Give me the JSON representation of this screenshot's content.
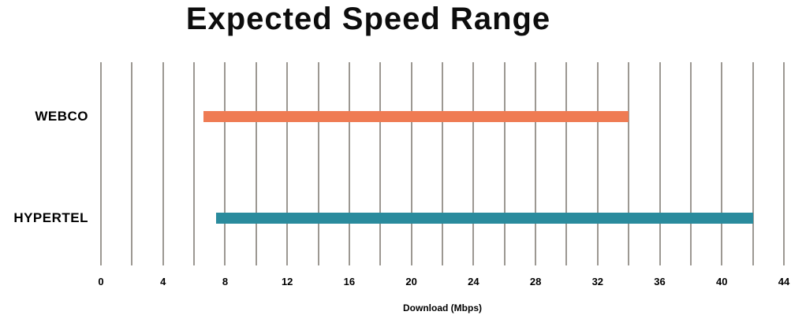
{
  "title": "Expected Speed Range",
  "chart_data": {
    "type": "bar",
    "subtype": "horizontal-range-bars",
    "title": "Expected Speed Range",
    "xlabel": "Download (Mbps)",
    "categories": [
      "WEBCO",
      "HYPERTEL"
    ],
    "series": [
      {
        "name": "WEBCO",
        "min_mbps": 6.6,
        "max_mbps": 34,
        "color": "#ef7b53"
      },
      {
        "name": "HYPERTEL",
        "min_mbps": 7.4,
        "max_mbps": 42,
        "color": "#2a8b9d"
      }
    ],
    "xlim": [
      0,
      44
    ],
    "x_major_ticks": [
      0,
      4,
      8,
      12,
      16,
      20,
      24,
      28,
      32,
      36,
      40,
      44
    ],
    "x_grid_step_mbps": 2,
    "grid": "vertical-only",
    "gridline_color": "#9c9892",
    "legend_position": "none",
    "background_color": "#ffffff"
  }
}
